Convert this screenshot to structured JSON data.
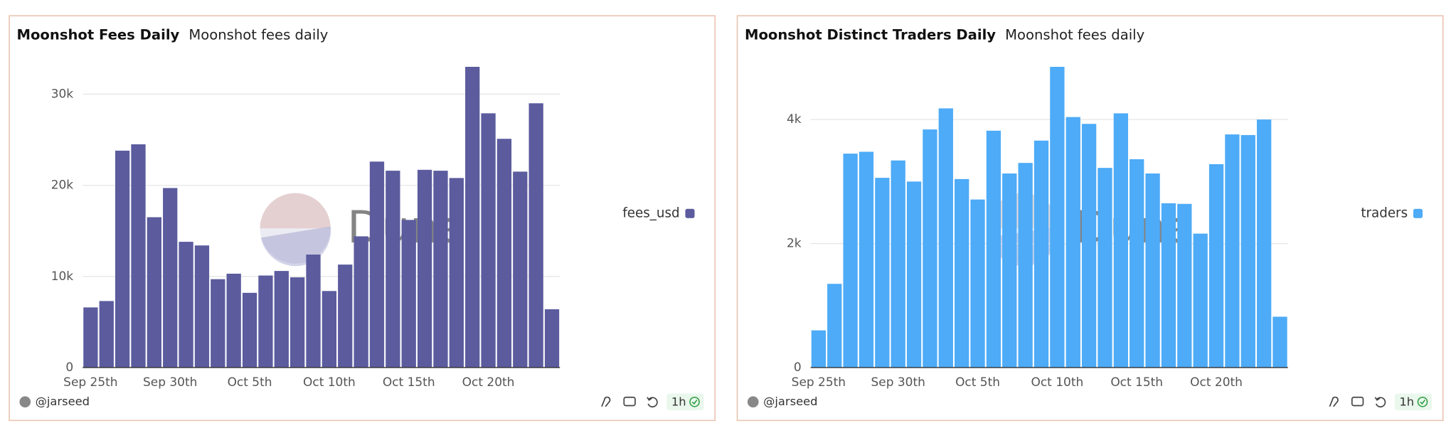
{
  "chart_data": [
    {
      "type": "bar",
      "title": "Moonshot Fees Daily",
      "subtitle": "Moonshot fees daily",
      "categories": [
        "Sep 25th",
        null,
        null,
        null,
        null,
        "Sep 30th",
        null,
        null,
        null,
        null,
        "Oct 5th",
        null,
        null,
        null,
        null,
        "Oct 10th",
        null,
        null,
        null,
        null,
        "Oct 15th",
        null,
        null,
        null,
        null,
        "Oct 20th",
        null,
        null,
        null,
        null
      ],
      "series": [
        {
          "name": "fees_usd",
          "color": "#5b5b9e",
          "values": [
            6600,
            7300,
            23800,
            24500,
            16500,
            19700,
            13800,
            13400,
            9700,
            10300,
            8200,
            10100,
            10600,
            9900,
            12400,
            8400,
            11300,
            14400,
            22600,
            21600,
            16200,
            21700,
            21600,
            20800,
            33000,
            27900,
            25100,
            21500,
            29000,
            6400
          ]
        }
      ],
      "ylim": [
        0,
        33000
      ],
      "yticks": [
        0,
        {
          "value": 10000,
          "label": "10k"
        },
        {
          "value": 20000,
          "label": "20k"
        },
        {
          "value": 30000,
          "label": "30k"
        }
      ],
      "grid": true,
      "legend": "right",
      "watermark": "Dune",
      "author": "@jarseed",
      "refresh": "1h"
    },
    {
      "type": "bar",
      "title": "Moonshot Distinct Traders Daily",
      "subtitle": "Moonshot fees daily",
      "categories": [
        "Sep 25th",
        null,
        null,
        null,
        null,
        "Sep 30th",
        null,
        null,
        null,
        null,
        "Oct 5th",
        null,
        null,
        null,
        null,
        "Oct 10th",
        null,
        null,
        null,
        null,
        "Oct 15th",
        null,
        null,
        null,
        null,
        "Oct 20th",
        null,
        null,
        null,
        null
      ],
      "series": [
        {
          "name": "traders",
          "color": "#4dabf7",
          "values": [
            600,
            1350,
            3450,
            3480,
            3060,
            3340,
            3000,
            3840,
            4180,
            3040,
            2710,
            3820,
            3130,
            3300,
            3660,
            4850,
            4040,
            3930,
            3220,
            4100,
            3360,
            3130,
            2650,
            2640,
            2160,
            3280,
            3760,
            3750,
            4000,
            820
          ]
        }
      ],
      "ylim": [
        0,
        4850
      ],
      "yticks": [
        0,
        {
          "value": 2000,
          "label": "2k"
        },
        {
          "value": 4000,
          "label": "4k"
        }
      ],
      "grid": true,
      "legend": "right",
      "watermark": "Dune",
      "author": "@jarseed",
      "refresh": "1h"
    }
  ]
}
